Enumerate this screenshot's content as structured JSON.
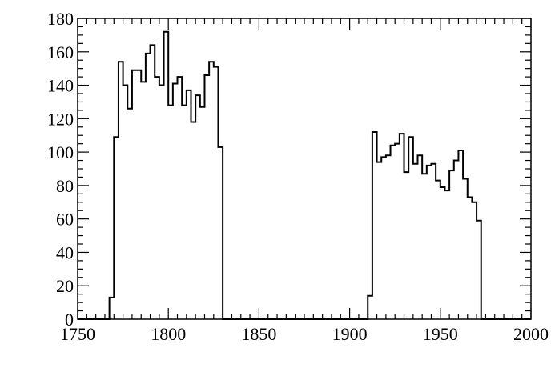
{
  "chart_data": {
    "type": "histogram",
    "title": "",
    "xlabel": "",
    "ylabel": "",
    "xlim": [
      1750,
      2000
    ],
    "ylim": [
      0,
      180
    ],
    "grid": false,
    "x_ticks": [
      "1750",
      "1800",
      "1850",
      "1900",
      "1950",
      "2000"
    ],
    "y_ticks": [
      "0",
      "20",
      "40",
      "60",
      "80",
      "100",
      "120",
      "140",
      "160",
      "180"
    ],
    "bin_width": 2.5,
    "bins_start": 1750,
    "values": [
      0,
      0,
      0,
      0,
      0,
      0,
      0,
      13,
      109,
      154,
      140,
      126,
      149,
      149,
      142,
      159,
      164,
      145,
      140,
      172,
      128,
      141,
      145,
      128,
      137,
      118,
      134,
      127,
      146,
      154,
      151,
      103,
      0,
      0,
      0,
      0,
      0,
      0,
      0,
      0,
      0,
      0,
      0,
      0,
      0,
      0,
      0,
      0,
      0,
      0,
      0,
      0,
      0,
      0,
      0,
      0,
      0,
      0,
      0,
      0,
      0,
      0,
      0,
      0,
      14,
      112,
      94,
      97,
      98,
      104,
      105,
      111,
      88,
      109,
      93,
      98,
      87,
      92,
      93,
      83,
      79,
      77,
      89,
      95,
      101,
      84,
      73,
      70,
      59,
      0,
      0,
      0,
      0,
      0,
      0,
      0,
      0,
      0,
      0,
      0
    ]
  }
}
